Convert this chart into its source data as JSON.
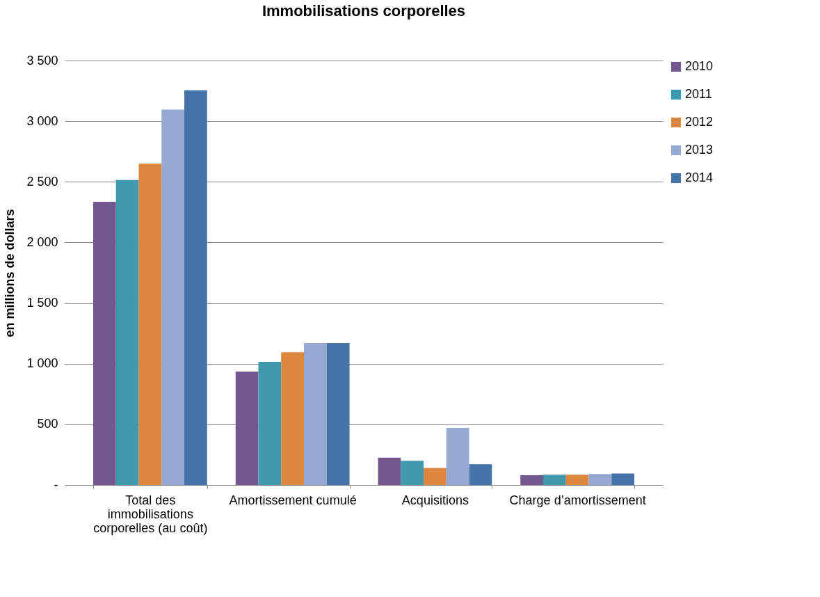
{
  "chart_data": {
    "type": "bar",
    "title": "Immobilisations corporelles",
    "ylabel": "en millions de dollars",
    "categories": [
      "Total des immobilisations corporelles (au coût)",
      "Amortissement cumulé",
      "Acquisitions",
      "Charge d’amortissement"
    ],
    "series": [
      {
        "name": "2010",
        "color": "#72588f",
        "values": [
          2335,
          935,
          225,
          80
        ]
      },
      {
        "name": "2011",
        "color": "#3f9aae",
        "values": [
          2515,
          1015,
          200,
          85
        ]
      },
      {
        "name": "2012",
        "color": "#dd8640",
        "values": [
          2650,
          1095,
          140,
          85
        ]
      },
      {
        "name": "2013",
        "color": "#95a9d2",
        "values": [
          3095,
          1170,
          470,
          90
        ]
      },
      {
        "name": "2014",
        "color": "#4473a8",
        "values": [
          3255,
          1170,
          170,
          95
        ]
      }
    ],
    "ylim": [
      0,
      3500
    ],
    "yticks": [
      {
        "value": 0,
        "label": "-"
      },
      {
        "value": 500,
        "label": "500"
      },
      {
        "value": 1000,
        "label": "1 000"
      },
      {
        "value": 1500,
        "label": "1 500"
      },
      {
        "value": 2000,
        "label": "2 000"
      },
      {
        "value": 2500,
        "label": "2 500"
      },
      {
        "value": 3000,
        "label": "3 000"
      },
      {
        "value": 3500,
        "label": "3 500"
      }
    ],
    "grid": "y",
    "legend": "right"
  }
}
